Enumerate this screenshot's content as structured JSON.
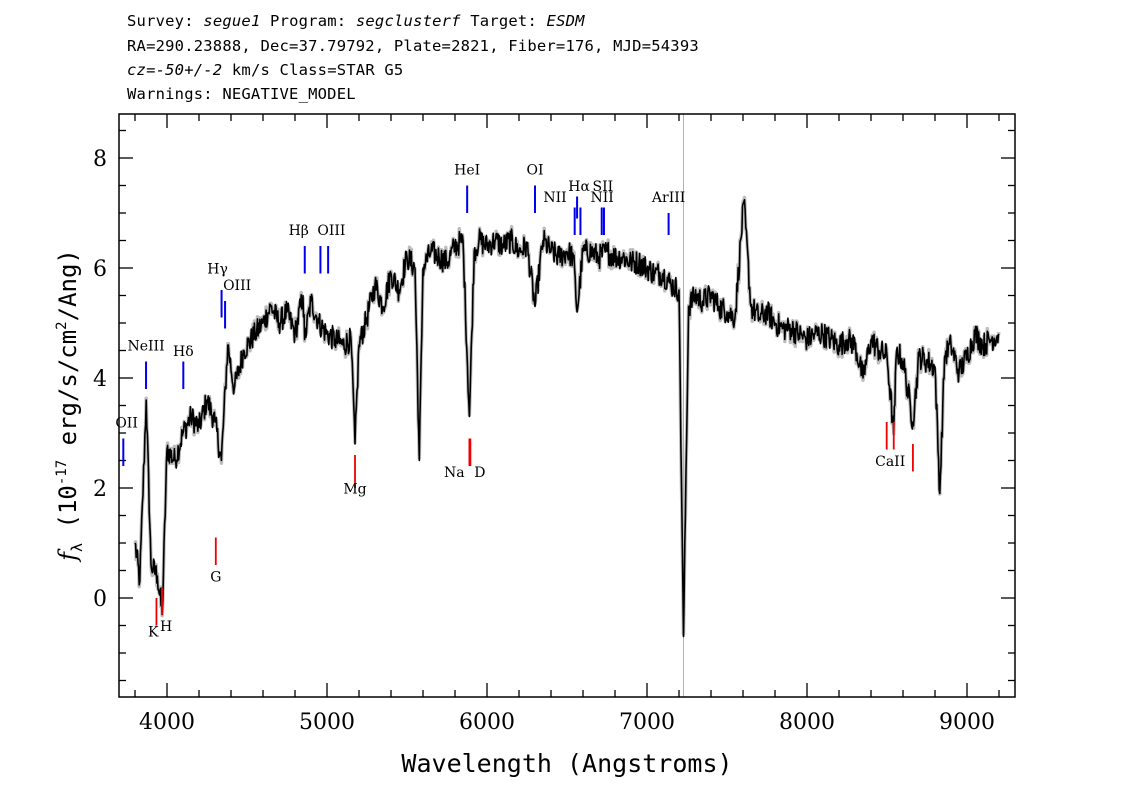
{
  "header": {
    "survey_label": "Survey:",
    "survey": "segue1",
    "program_label": "Program:",
    "program": "segclusterf",
    "target_label": "Target:",
    "target": "ESDM",
    "line2": "RA=290.23888, Dec=37.79792, Plate=2821, Fiber=176, MJD=54393",
    "cz_label": "cz=",
    "cz_value": "-50+/-2",
    "cz_units": " km/s Class=STAR G5",
    "warnings": "Warnings: NEGATIVE_MODEL"
  },
  "chart_data": {
    "type": "line",
    "xlabel": "Wavelength (Angstroms)",
    "ylabel": "f_λ (10^-17 erg/s/cm^2/Ang)",
    "xlim": [
      3700,
      9300
    ],
    "ylim": [
      -1.8,
      8.8
    ],
    "xticks": [
      4000,
      5000,
      6000,
      7000,
      8000,
      9000
    ],
    "yticks": [
      0,
      2,
      4,
      6,
      8
    ],
    "tick_labels_x": [
      "4000",
      "5000",
      "6000",
      "7000",
      "8000",
      "9000"
    ],
    "tick_labels_y": [
      "0",
      "2",
      "4",
      "6",
      "8"
    ],
    "grid": false,
    "series": [
      {
        "color": "#000000",
        "x": [
          3800,
          3830,
          3870,
          3900,
          3940,
          3970,
          4000,
          4050,
          4100,
          4150,
          4200,
          4250,
          4300,
          4340,
          4380,
          4420,
          4480,
          4550,
          4600,
          4650,
          4700,
          4750,
          4800,
          4850,
          4860,
          4900,
          4950,
          5000,
          5050,
          5100,
          5150,
          5175,
          5200,
          5250,
          5300,
          5350,
          5400,
          5450,
          5500,
          5550,
          5577,
          5600,
          5650,
          5700,
          5750,
          5800,
          5850,
          5890,
          5920,
          5950,
          6000,
          6050,
          6100,
          6150,
          6200,
          6250,
          6300,
          6350,
          6400,
          6450,
          6500,
          6540,
          6563,
          6600,
          6650,
          6700,
          6750,
          6800,
          6850,
          6900,
          6950,
          7000,
          7050,
          7100,
          7150,
          7200,
          7228,
          7260,
          7300,
          7350,
          7400,
          7450,
          7500,
          7550,
          7605,
          7650,
          7700,
          7750,
          7800,
          7850,
          7900,
          7950,
          8000,
          8050,
          8100,
          8150,
          8200,
          8250,
          8300,
          8350,
          8400,
          8450,
          8500,
          8542,
          8560,
          8600,
          8662,
          8700,
          8750,
          8800,
          8830,
          8860,
          8900,
          8950,
          9000,
          9050,
          9100,
          9150,
          9200
        ],
        "values": [
          1.0,
          0.3,
          3.6,
          0.6,
          0.4,
          -0.3,
          2.7,
          2.5,
          3.0,
          3.3,
          3.1,
          3.6,
          3.2,
          2.5,
          4.6,
          3.8,
          4.5,
          4.8,
          5.0,
          5.3,
          5.0,
          5.2,
          4.8,
          5.5,
          4.7,
          5.4,
          5.0,
          4.8,
          4.7,
          4.6,
          4.7,
          2.8,
          4.6,
          5.1,
          5.7,
          5.3,
          5.9,
          5.6,
          6.2,
          6.0,
          2.5,
          6.0,
          6.3,
          6.2,
          6.1,
          6.4,
          6.5,
          3.3,
          6.3,
          6.5,
          6.4,
          6.5,
          6.4,
          6.5,
          6.3,
          6.4,
          5.3,
          6.5,
          6.3,
          6.2,
          6.3,
          6.2,
          5.2,
          6.3,
          6.3,
          6.2,
          6.3,
          6.2,
          6.2,
          6.1,
          6.1,
          6.0,
          5.9,
          5.9,
          5.7,
          5.6,
          -0.7,
          5.3,
          5.5,
          5.4,
          5.5,
          5.3,
          5.2,
          5.1,
          7.2,
          5.3,
          5.1,
          5.2,
          5.0,
          4.9,
          4.9,
          4.8,
          4.7,
          4.8,
          4.8,
          4.7,
          4.6,
          4.7,
          4.6,
          4.0,
          4.7,
          4.5,
          4.4,
          3.0,
          4.5,
          4.3,
          3.2,
          4.4,
          4.3,
          4.2,
          1.9,
          4.4,
          4.6,
          4.1,
          4.4,
          4.8,
          4.6,
          4.7,
          4.8
        ]
      }
    ],
    "annotations": {
      "emission": [
        {
          "label": "OII",
          "x": 3727
        },
        {
          "label": "NeIII",
          "x": 3869
        },
        {
          "label": "Hδ",
          "x": 4102
        },
        {
          "label": "Hγ",
          "x": 4341
        },
        {
          "label": "OIII",
          "x": 4363
        },
        {
          "label": "Hβ",
          "x": 4861
        },
        {
          "label": "OIII",
          "x": 4959
        },
        {
          "label": "OIII",
          "x": 5007
        },
        {
          "label": "HeI",
          "x": 5876
        },
        {
          "label": "OI",
          "x": 6300
        },
        {
          "label": "NII",
          "x": 6548
        },
        {
          "label": "Hα",
          "x": 6563
        },
        {
          "label": "NII",
          "x": 6584
        },
        {
          "label": "SII",
          "x": 6717
        },
        {
          "label": "SII",
          "x": 6731
        },
        {
          "label": "ArIII",
          "x": 7135
        }
      ],
      "absorption": [
        {
          "label": "K",
          "x": 3934
        },
        {
          "label": "H",
          "x": 3969
        },
        {
          "label": "G",
          "x": 4305
        },
        {
          "label": "Mg",
          "x": 5175
        },
        {
          "label": "Na",
          "x": 5890
        },
        {
          "label": "D",
          "x": 5896
        },
        {
          "label": "CaII",
          "x": 8498
        },
        {
          "label": "CaII",
          "x": 8542
        },
        {
          "label": "CaII",
          "x": 8662
        }
      ]
    }
  }
}
